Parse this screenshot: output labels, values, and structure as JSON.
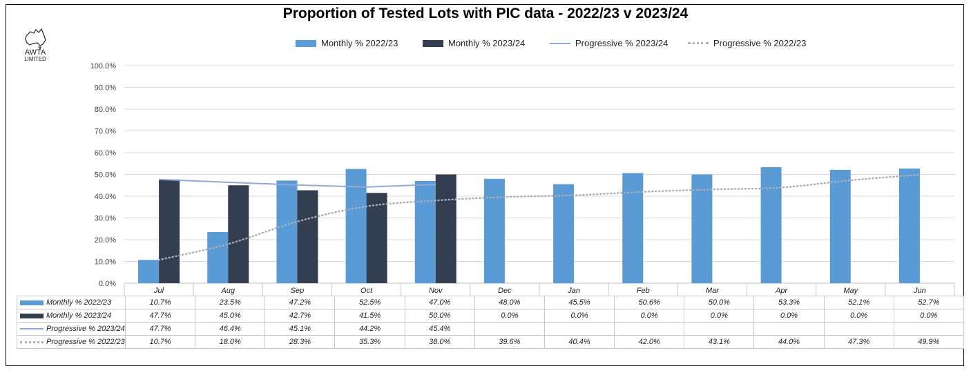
{
  "chart_data": {
    "type": "bar",
    "title": "Proportion of Tested Lots with PIC data - 2022/23 v 2023/24",
    "categories": [
      "Jul",
      "Aug",
      "Sep",
      "Oct",
      "Nov",
      "Dec",
      "Jan",
      "Feb",
      "Mar",
      "Apr",
      "May",
      "Jun"
    ],
    "ylim": [
      0,
      100
    ],
    "yticks": [
      "0.0%",
      "10.0%",
      "20.0%",
      "30.0%",
      "40.0%",
      "50.0%",
      "60.0%",
      "70.0%",
      "80.0%",
      "90.0%",
      "100.0%"
    ],
    "series": [
      {
        "name": "Monthly % 2022/23",
        "kind": "bar",
        "color": "#5b9bd5",
        "values": [
          10.7,
          23.5,
          47.2,
          52.5,
          47.0,
          48.0,
          45.5,
          50.6,
          50.0,
          53.3,
          52.1,
          52.7
        ],
        "labels": [
          "10.7%",
          "23.5%",
          "47.2%",
          "52.5%",
          "47.0%",
          "48.0%",
          "45.5%",
          "50.6%",
          "50.0%",
          "53.3%",
          "52.1%",
          "52.7%"
        ]
      },
      {
        "name": "Monthly % 2023/24",
        "kind": "bar",
        "color": "#333f50",
        "values": [
          47.7,
          45.0,
          42.7,
          41.5,
          50.0,
          0.0,
          0.0,
          0.0,
          0.0,
          0.0,
          0.0,
          0.0
        ],
        "labels": [
          "47.7%",
          "45.0%",
          "42.7%",
          "41.5%",
          "50.0%",
          "0.0%",
          "0.0%",
          "0.0%",
          "0.0%",
          "0.0%",
          "0.0%",
          "0.0%"
        ]
      },
      {
        "name": "Progressive % 2023/24",
        "kind": "line",
        "color": "#8eaadb",
        "values": [
          47.7,
          46.4,
          45.1,
          44.2,
          45.4,
          null,
          null,
          null,
          null,
          null,
          null,
          null
        ],
        "labels": [
          "47.7%",
          "46.4%",
          "45.1%",
          "44.2%",
          "45.4%",
          "",
          "",
          "",
          "",
          "",
          "",
          ""
        ]
      },
      {
        "name": "Progressive % 2022/23",
        "kind": "dotted",
        "color": "#a6aebb",
        "values": [
          10.7,
          18.0,
          28.3,
          35.3,
          38.0,
          39.6,
          40.4,
          42.0,
          43.1,
          44.0,
          47.3,
          49.9
        ],
        "labels": [
          "10.7%",
          "18.0%",
          "28.3%",
          "35.3%",
          "38.0%",
          "39.6%",
          "40.4%",
          "42.0%",
          "43.1%",
          "44.0%",
          "47.3%",
          "49.9%"
        ]
      }
    ]
  },
  "logo": {
    "line1": "AWTA",
    "line2": "LIMITED"
  }
}
